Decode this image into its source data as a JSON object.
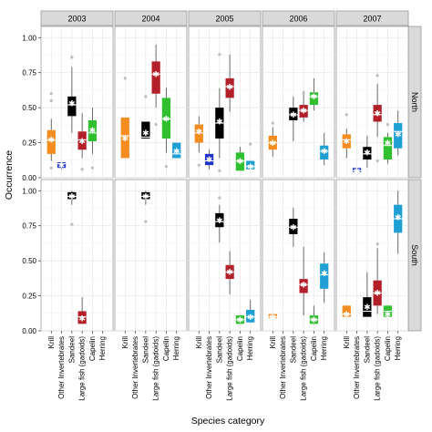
{
  "chart_data": {
    "type": "boxplot",
    "xlabel": "Species category",
    "ylabel": "Occurrence",
    "ylim": [
      0,
      1.08
    ],
    "yticks": [
      "0.00",
      "0.25",
      "0.50",
      "0.75",
      "1.00"
    ],
    "ytick_values": [
      0,
      0.25,
      0.5,
      0.75,
      1.0
    ],
    "columns": [
      "2003",
      "2004",
      "2005",
      "2006",
      "2007"
    ],
    "rows": [
      "North",
      "South"
    ],
    "categories": [
      "Krill",
      "Other Invertebrates",
      "Sandeel",
      "Large fish (gadoids)",
      "Capelin",
      "Herring"
    ],
    "colors": {
      "Krill": "#f58c1f",
      "Other Invertebrates": "#1f33cc",
      "Sandeel": "#000000",
      "Large fish (gadoids)": "#b3202a",
      "Capelin": "#2fbf2f",
      "Herring": "#1f9fd3"
    },
    "grid": true,
    "panels": [
      {
        "col": "2003",
        "row": "North",
        "boxes": [
          {
            "cat": "Krill",
            "q1": 0.17,
            "med": 0.27,
            "q3": 0.34,
            "lo": 0.12,
            "hi": 0.42,
            "mean": 0.27,
            "outliers": [
              0.55,
              0.6,
              0.07
            ]
          },
          {
            "cat": "Other Invertebrates",
            "q1": 0.07,
            "med": 0.1,
            "q3": 0.11,
            "lo": 0.06,
            "hi": 0.11,
            "mean": 0.09,
            "outliers": []
          },
          {
            "cat": "Sandeel",
            "q1": 0.44,
            "med": 0.52,
            "q3": 0.58,
            "lo": 0.32,
            "hi": 0.79,
            "mean": 0.53,
            "outliers": [
              0.86
            ]
          },
          {
            "cat": "Large fish (gadoids)",
            "q1": 0.2,
            "med": 0.27,
            "q3": 0.33,
            "lo": 0.14,
            "hi": 0.46,
            "mean": 0.26,
            "outliers": [
              0.06
            ]
          },
          {
            "cat": "Capelin",
            "q1": 0.26,
            "med": 0.32,
            "q3": 0.41,
            "lo": 0.17,
            "hi": 0.5,
            "mean": 0.34,
            "outliers": [
              0.07
            ]
          }
        ]
      },
      {
        "col": "2004",
        "row": "North",
        "boxes": [
          {
            "cat": "Krill",
            "q1": 0.14,
            "med": 0.3,
            "q3": 0.43,
            "lo": 0.14,
            "hi": 0.43,
            "mean": 0.28,
            "outliers": [
              0.71
            ]
          },
          {
            "cat": "Sandeel",
            "q1": 0.28,
            "med": 0.29,
            "q3": 0.4,
            "lo": 0.28,
            "hi": 0.4,
            "mean": 0.32,
            "outliers": [
              0.58
            ]
          },
          {
            "cat": "Large fish (gadoids)",
            "q1": 0.6,
            "med": 0.74,
            "q3": 0.83,
            "lo": 0.5,
            "hi": 0.95,
            "mean": 0.74,
            "outliers": [
              0.38
            ]
          },
          {
            "cat": "Capelin",
            "q1": 0.28,
            "med": 0.42,
            "q3": 0.57,
            "lo": 0.18,
            "hi": 0.64,
            "mean": 0.42,
            "outliers": [
              0.08
            ]
          },
          {
            "cat": "Herring",
            "q1": 0.14,
            "med": 0.17,
            "q3": 0.25,
            "lo": 0.14,
            "hi": 0.25,
            "mean": 0.19,
            "outliers": []
          }
        ]
      },
      {
        "col": "2005",
        "row": "North",
        "boxes": [
          {
            "cat": "Krill",
            "q1": 0.25,
            "med": 0.32,
            "q3": 0.38,
            "lo": 0.18,
            "hi": 0.44,
            "mean": 0.33,
            "outliers": [
              0.09
            ]
          },
          {
            "cat": "Other Invertebrates",
            "q1": 0.09,
            "med": 0.12,
            "q3": 0.17,
            "lo": 0.06,
            "hi": 0.2,
            "mean": 0.13,
            "outliers": []
          },
          {
            "cat": "Sandeel",
            "q1": 0.28,
            "med": 0.39,
            "q3": 0.5,
            "lo": 0.14,
            "hi": 0.64,
            "mean": 0.4,
            "outliers": [
              0.05,
              0.88
            ]
          },
          {
            "cat": "Large fish (gadoids)",
            "q1": 0.57,
            "med": 0.65,
            "q3": 0.71,
            "lo": 0.47,
            "hi": 0.88,
            "mean": 0.65,
            "outliers": []
          },
          {
            "cat": "Capelin",
            "q1": 0.05,
            "med": 0.12,
            "q3": 0.18,
            "lo": 0.05,
            "hi": 0.22,
            "mean": 0.12,
            "outliers": []
          },
          {
            "cat": "Herring",
            "q1": 0.06,
            "med": 0.08,
            "q3": 0.12,
            "lo": 0.06,
            "hi": 0.12,
            "mean": 0.08,
            "outliers": [
              0.24
            ]
          }
        ]
      },
      {
        "col": "2006",
        "row": "North",
        "boxes": [
          {
            "cat": "Krill",
            "q1": 0.2,
            "med": 0.25,
            "q3": 0.3,
            "lo": 0.15,
            "hi": 0.36,
            "mean": 0.25,
            "outliers": [
              0.39
            ]
          },
          {
            "cat": "Sandeel",
            "q1": 0.41,
            "med": 0.45,
            "q3": 0.5,
            "lo": 0.26,
            "hi": 0.58,
            "mean": 0.45,
            "outliers": []
          },
          {
            "cat": "Large fish (gadoids)",
            "q1": 0.43,
            "med": 0.48,
            "q3": 0.52,
            "lo": 0.4,
            "hi": 0.62,
            "mean": 0.48,
            "outliers": [
              0.6
            ]
          },
          {
            "cat": "Capelin",
            "q1": 0.52,
            "med": 0.58,
            "q3": 0.61,
            "lo": 0.48,
            "hi": 0.71,
            "mean": 0.58,
            "outliers": []
          },
          {
            "cat": "Herring",
            "q1": 0.13,
            "med": 0.19,
            "q3": 0.23,
            "lo": 0.09,
            "hi": 0.32,
            "mean": 0.19,
            "outliers": []
          }
        ]
      },
      {
        "col": "2007",
        "row": "North",
        "boxes": [
          {
            "cat": "Krill",
            "q1": 0.21,
            "med": 0.27,
            "q3": 0.31,
            "lo": 0.14,
            "hi": 0.35,
            "mean": 0.26,
            "outliers": [
              0.45
            ]
          },
          {
            "cat": "Other Invertebrates",
            "q1": 0.04,
            "med": 0.05,
            "q3": 0.07,
            "lo": 0.04,
            "hi": 0.07,
            "mean": 0.05,
            "outliers": []
          },
          {
            "cat": "Sandeel",
            "q1": 0.13,
            "med": 0.17,
            "q3": 0.22,
            "lo": 0.07,
            "hi": 0.3,
            "mean": 0.18,
            "outliers": []
          },
          {
            "cat": "Large fish (gadoids)",
            "q1": 0.4,
            "med": 0.45,
            "q3": 0.52,
            "lo": 0.29,
            "hi": 0.67,
            "mean": 0.46,
            "outliers": [
              0.73,
              0.12
            ]
          },
          {
            "cat": "Capelin",
            "q1": 0.13,
            "med": 0.23,
            "q3": 0.29,
            "lo": 0.1,
            "hi": 0.32,
            "mean": 0.25,
            "outliers": [
              0.38
            ]
          },
          {
            "cat": "Herring",
            "q1": 0.21,
            "med": 0.33,
            "q3": 0.39,
            "lo": 0.16,
            "hi": 0.48,
            "mean": 0.31,
            "outliers": []
          }
        ]
      },
      {
        "col": "2003",
        "row": "South",
        "boxes": [
          {
            "cat": "Sandeel",
            "q1": 0.94,
            "med": 0.96,
            "q3": 0.99,
            "lo": 0.9,
            "hi": 1.0,
            "mean": 0.96,
            "outliers": [
              0.76
            ]
          },
          {
            "cat": "Large fish (gadoids)",
            "q1": 0.05,
            "med": 0.1,
            "q3": 0.14,
            "lo": 0.05,
            "hi": 0.24,
            "mean": 0.09,
            "outliers": []
          }
        ]
      },
      {
        "col": "2004",
        "row": "South",
        "boxes": [
          {
            "cat": "Sandeel",
            "q1": 0.94,
            "med": 0.96,
            "q3": 0.99,
            "lo": 0.9,
            "hi": 1.0,
            "mean": 0.96,
            "outliers": [
              0.78
            ]
          }
        ]
      },
      {
        "col": "2005",
        "row": "South",
        "boxes": [
          {
            "cat": "Sandeel",
            "q1": 0.74,
            "med": 0.78,
            "q3": 0.84,
            "lo": 0.63,
            "hi": 0.9,
            "mean": 0.79,
            "outliers": [
              0.95
            ]
          },
          {
            "cat": "Large fish (gadoids)",
            "q1": 0.37,
            "med": 0.42,
            "q3": 0.47,
            "lo": 0.26,
            "hi": 0.57,
            "mean": 0.42,
            "outliers": []
          },
          {
            "cat": "Capelin",
            "q1": 0.05,
            "med": 0.08,
            "q3": 0.11,
            "lo": 0.05,
            "hi": 0.11,
            "mean": 0.08,
            "outliers": []
          },
          {
            "cat": "Herring",
            "q1": 0.06,
            "med": 0.1,
            "q3": 0.15,
            "lo": 0.06,
            "hi": 0.22,
            "mean": 0.1,
            "outliers": []
          }
        ]
      },
      {
        "col": "2006",
        "row": "South",
        "boxes": [
          {
            "cat": "Krill",
            "q1": 0.09,
            "med": 0.1,
            "q3": 0.12,
            "lo": 0.09,
            "hi": 0.12,
            "mean": 0.1,
            "outliers": []
          },
          {
            "cat": "Sandeel",
            "q1": 0.69,
            "med": 0.74,
            "q3": 0.8,
            "lo": 0.6,
            "hi": 0.88,
            "mean": 0.74,
            "outliers": []
          },
          {
            "cat": "Large fish (gadoids)",
            "q1": 0.27,
            "med": 0.33,
            "q3": 0.37,
            "lo": 0.11,
            "hi": 0.6,
            "mean": 0.33,
            "outliers": []
          },
          {
            "cat": "Capelin",
            "q1": 0.05,
            "med": 0.08,
            "q3": 0.11,
            "lo": 0.05,
            "hi": 0.18,
            "mean": 0.08,
            "outliers": []
          },
          {
            "cat": "Herring",
            "q1": 0.3,
            "med": 0.4,
            "q3": 0.48,
            "lo": 0.2,
            "hi": 0.56,
            "mean": 0.41,
            "outliers": []
          }
        ]
      },
      {
        "col": "2007",
        "row": "South",
        "boxes": [
          {
            "cat": "Krill",
            "q1": 0.1,
            "med": 0.12,
            "q3": 0.18,
            "lo": 0.1,
            "hi": 0.18,
            "mean": 0.12,
            "outliers": []
          },
          {
            "cat": "Sandeel",
            "q1": 0.1,
            "med": 0.14,
            "q3": 0.24,
            "lo": 0.1,
            "hi": 0.42,
            "mean": 0.17,
            "outliers": []
          },
          {
            "cat": "Large fish (gadoids)",
            "q1": 0.18,
            "med": 0.27,
            "q3": 0.36,
            "lo": 0.12,
            "hi": 0.59,
            "mean": 0.27,
            "outliers": [
              0.62
            ]
          },
          {
            "cat": "Capelin",
            "q1": 0.1,
            "med": 0.14,
            "q3": 0.18,
            "lo": 0.1,
            "hi": 0.18,
            "mean": 0.12,
            "outliers": []
          },
          {
            "cat": "Herring",
            "q1": 0.7,
            "med": 0.8,
            "q3": 0.9,
            "lo": 0.55,
            "hi": 1.0,
            "mean": 0.81,
            "outliers": []
          }
        ]
      }
    ]
  }
}
